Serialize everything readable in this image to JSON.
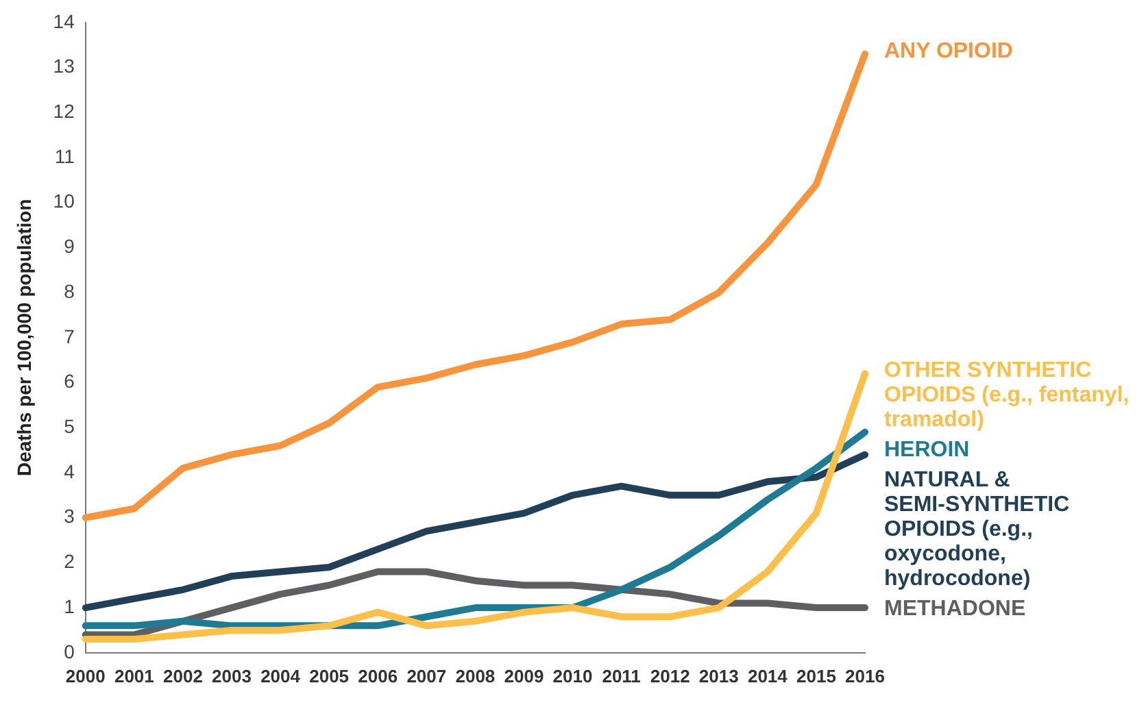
{
  "chart_data": {
    "type": "line",
    "ylabel": "Deaths per 100,000 population",
    "categories": [
      "2000",
      "2001",
      "2002",
      "2003",
      "2004",
      "2005",
      "2006",
      "2007",
      "2008",
      "2009",
      "2010",
      "2011",
      "2012",
      "2013",
      "2014",
      "2015",
      "2016"
    ],
    "ylim": [
      0,
      14
    ],
    "yticks": [
      0,
      1,
      2,
      3,
      4,
      5,
      6,
      7,
      8,
      9,
      10,
      11,
      12,
      13,
      14
    ],
    "grid": false,
    "legend": false,
    "marker": "none",
    "line_style": "solid",
    "series": [
      {
        "name": "ANY OPIOID",
        "color": "#f7953f",
        "values": [
          3.0,
          3.2,
          4.1,
          4.4,
          4.6,
          5.1,
          5.9,
          6.1,
          6.4,
          6.6,
          6.9,
          7.3,
          7.4,
          8.0,
          9.1,
          10.4,
          13.3
        ]
      },
      {
        "name": "OTHER SYNTHETIC OPIOIDS (e.g., fentanyl, tramadol)",
        "color": "#fbbf4a",
        "values": [
          0.3,
          0.3,
          0.4,
          0.5,
          0.5,
          0.6,
          0.9,
          0.6,
          0.7,
          0.9,
          1.0,
          0.8,
          0.8,
          1.0,
          1.8,
          3.1,
          6.2
        ]
      },
      {
        "name": "HEROIN",
        "color": "#1f7a93",
        "values": [
          0.6,
          0.6,
          0.7,
          0.6,
          0.6,
          0.6,
          0.6,
          0.8,
          1.0,
          1.0,
          1.0,
          1.4,
          1.9,
          2.6,
          3.4,
          4.1,
          4.9
        ]
      },
      {
        "name": "NATURAL & SEMI-SYNTHETIC OPIOIDS (e.g., oxycodone, hydrocodone)",
        "color": "#213f57",
        "values": [
          1.0,
          1.2,
          1.4,
          1.7,
          1.8,
          1.9,
          2.3,
          2.7,
          2.9,
          3.1,
          3.5,
          3.7,
          3.5,
          3.5,
          3.8,
          3.9,
          4.4
        ]
      },
      {
        "name": "METHADONE",
        "color": "#5f5f61",
        "values": [
          0.4,
          0.4,
          0.7,
          1.0,
          1.3,
          1.5,
          1.8,
          1.8,
          1.6,
          1.5,
          1.5,
          1.4,
          1.3,
          1.1,
          1.1,
          1.0,
          1.0
        ]
      }
    ]
  }
}
